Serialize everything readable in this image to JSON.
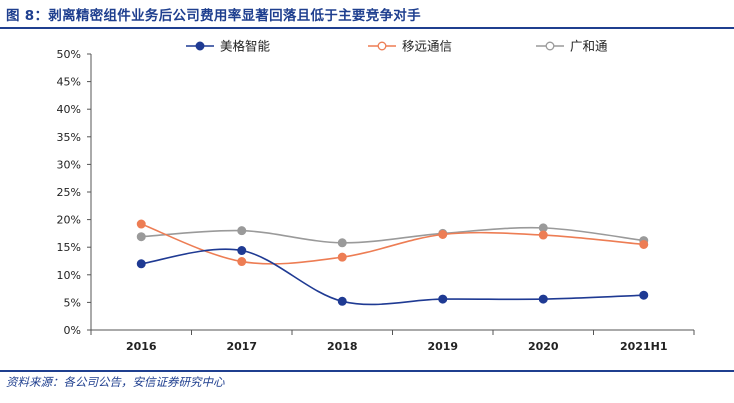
{
  "header": {
    "title": "图 8：剥离精密组件业务后公司费用率显著回落且低于主要竞争对手"
  },
  "footer": {
    "source": "资料来源：各公司公告，安信证券研究中心"
  },
  "chart_data": {
    "type": "line",
    "categories": [
      "2016",
      "2017",
      "2018",
      "2019",
      "2020",
      "2021H1"
    ],
    "ylim": [
      0,
      50
    ],
    "yticks": [
      0,
      5,
      10,
      15,
      20,
      25,
      30,
      35,
      40,
      45,
      50
    ],
    "y_tick_labels": [
      "0%",
      "5%",
      "10%",
      "15%",
      "20%",
      "25%",
      "30%",
      "35%",
      "40%",
      "45%",
      "50%"
    ],
    "grid": false,
    "legend_position": "top",
    "smooth": true,
    "series": [
      {
        "name": "美格智能",
        "values": [
          12.0,
          14.4,
          5.2,
          5.6,
          5.6,
          6.3
        ],
        "color": "#1f3a93",
        "marker": "filled-circle"
      },
      {
        "name": "移远通信",
        "values": [
          19.2,
          12.4,
          13.2,
          17.3,
          17.2,
          15.5
        ],
        "color": "#ed7d54",
        "marker": "circle"
      },
      {
        "name": "广和通",
        "values": [
          16.9,
          18.0,
          15.8,
          17.5,
          18.5,
          16.2
        ],
        "color": "#9a9a9a",
        "marker": "circle"
      }
    ]
  }
}
